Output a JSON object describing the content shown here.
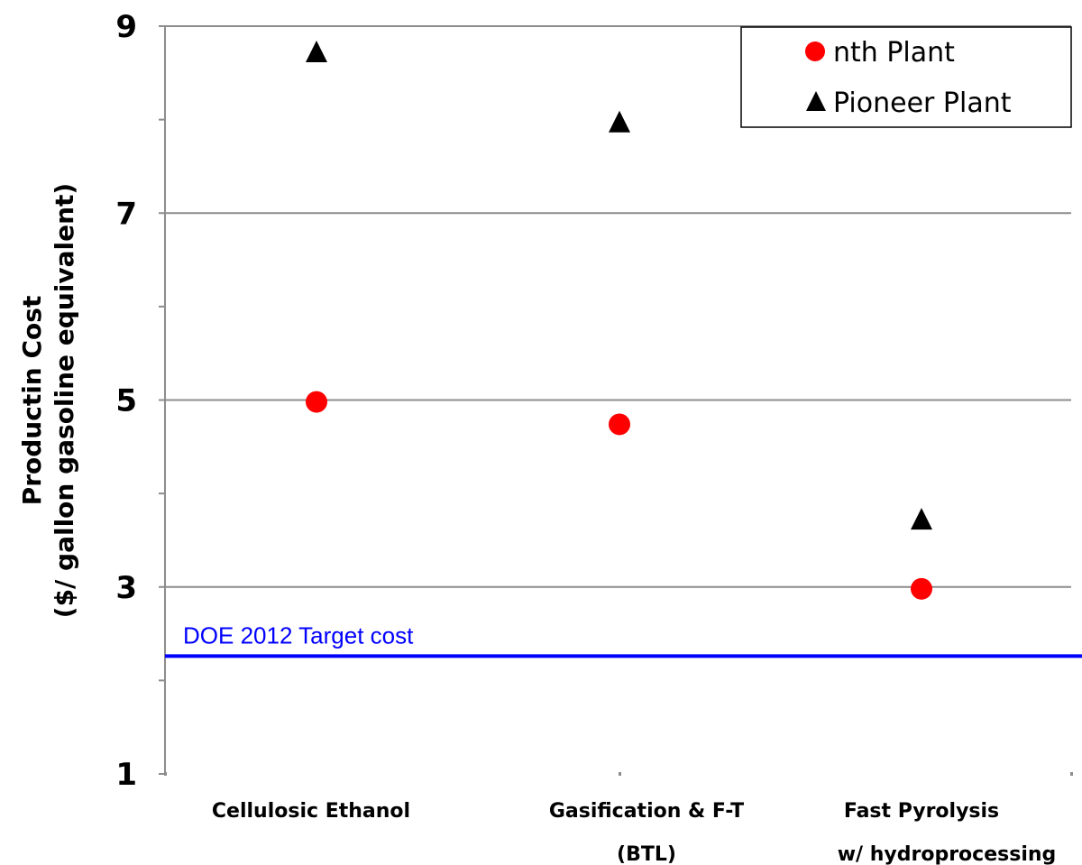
{
  "chart_data": {
    "type": "scatter",
    "categories": [
      [
        "Cellulosic Ethanol"
      ],
      [
        "Gasification & F-T",
        "(BTL)"
      ],
      [
        "Fast Pyrolysis",
        "w/ hydroprocessing"
      ]
    ],
    "series": [
      {
        "name": "nth Plant",
        "marker": "circle",
        "color": "#ff0000",
        "values": [
          4.98,
          4.74,
          2.98
        ]
      },
      {
        "name": "Pioneer Plant",
        "marker": "triangle",
        "color": "#000000",
        "values": [
          8.72,
          7.97,
          3.72
        ]
      }
    ],
    "reference_line": {
      "label": "DOE 2012 Target cost",
      "value": 2.26,
      "color": "#0000ff"
    },
    "ylabel": [
      "Productin Cost",
      "($/ gallon gasoline equivalent)"
    ],
    "ylim": [
      1,
      9
    ],
    "yticks": [
      1,
      3,
      5,
      7,
      9
    ],
    "minor_yticks": [
      2,
      4,
      6,
      8
    ],
    "gridlines": [
      3,
      5,
      7,
      9
    ],
    "legend_position": "top-right"
  }
}
